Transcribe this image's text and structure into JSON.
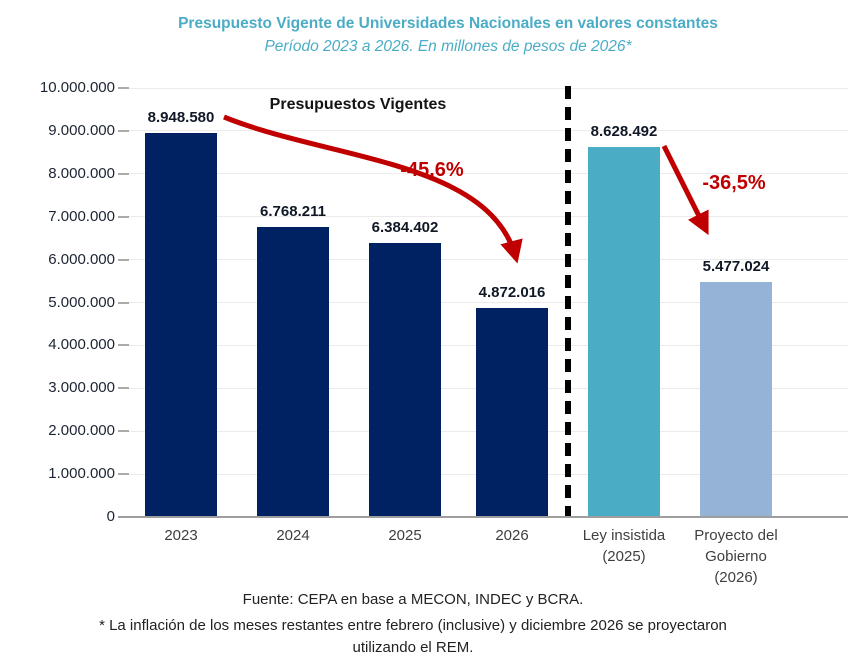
{
  "header": {
    "title": "Presupuesto Vigente de Universidades Nacionales en valores constantes",
    "subtitle": "Período 2023 a 2026. En millones de pesos de 2026*"
  },
  "chart_data": {
    "type": "bar",
    "inner_title": "Presupuestos Vigentes",
    "categories": [
      [
        "2023"
      ],
      [
        "2024"
      ],
      [
        "2025"
      ],
      [
        "2026"
      ],
      [
        "Ley insistida",
        "(2025)"
      ],
      [
        "Proyecto del",
        "Gobierno",
        "(2026)"
      ]
    ],
    "values": [
      8948580,
      6768211,
      6384402,
      4872016,
      8628492,
      5477024
    ],
    "value_labels": [
      "8.948.580",
      "6.768.211",
      "6.384.402",
      "4.872.016",
      "8.628.492",
      "5.477.024"
    ],
    "bar_colors": [
      "#002263",
      "#002263",
      "#002263",
      "#002263",
      "#4BACC6",
      "#95B3D7"
    ],
    "ylim": [
      0,
      10000000
    ],
    "ytick_step": 1000000,
    "ytick_labels": [
      "0",
      "1.000.000",
      "2.000.000",
      "3.000.000",
      "4.000.000",
      "5.000.000",
      "6.000.000",
      "7.000.000",
      "8.000.000",
      "9.000.000",
      "10.000.000"
    ],
    "grid": true,
    "legend_position": "none",
    "separator": {
      "after_category_index": 3,
      "style": "vertical-dashed-line",
      "color": "#000000"
    },
    "annotations": [
      {
        "label": "-45,6%",
        "from_category": "2023",
        "to_category": "2026",
        "shape": "curved-arrow",
        "color": "#C00000"
      },
      {
        "label": "-36,5%",
        "from_category": "Ley insistida (2025)",
        "to_category": "Proyecto del Gobierno (2026)",
        "shape": "straight-arrow",
        "color": "#C00000"
      }
    ]
  },
  "footer": {
    "source": "Fuente: CEPA en base a MECON, INDEC y BCRA.",
    "footnote_lines": [
      "* La inflación de los meses restantes entre febrero (inclusive) y diciembre 2026 se proyectaron",
      "utilizando el REM."
    ]
  },
  "colors": {
    "title_teal": "#4BACC6",
    "bar_navy": "#002263",
    "bar_teal": "#4BACC6",
    "bar_light_blue": "#95B3D7",
    "annotation_red": "#C00000",
    "gridline": "#EBEBEB",
    "axis_line": "#9E9E9E"
  }
}
